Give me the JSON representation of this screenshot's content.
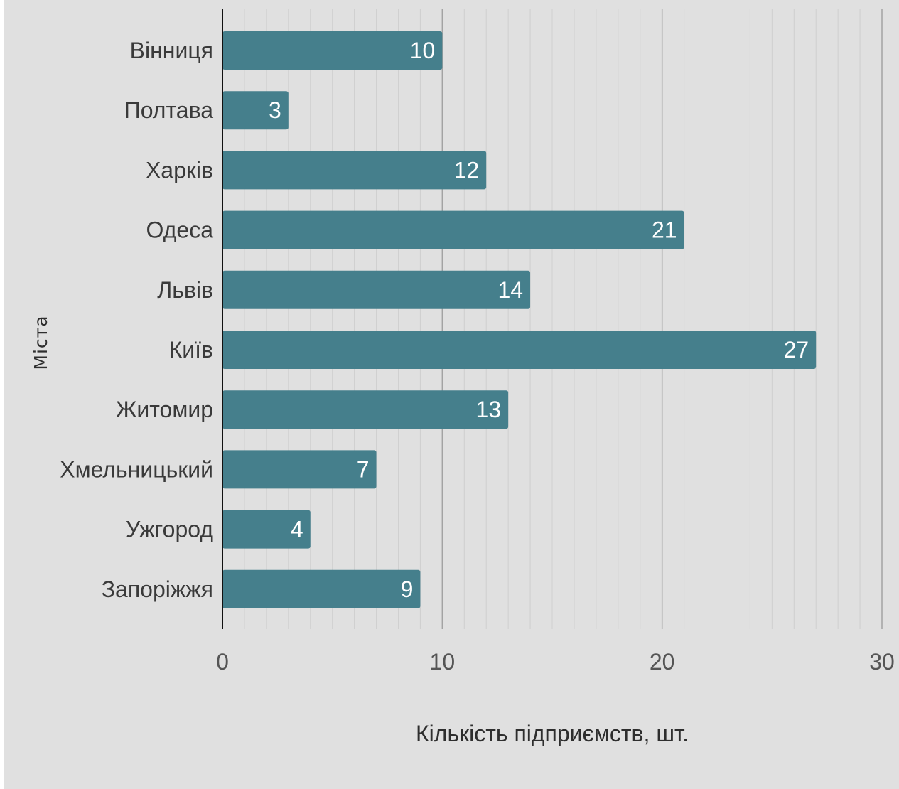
{
  "chart_data": {
    "type": "bar",
    "orientation": "horizontal",
    "categories": [
      "Вінниця",
      "Полтава",
      "Харків",
      "Одеса",
      "Львів",
      "Київ",
      "Житомир",
      "Хмельницький",
      "Ужгород",
      "Запоріжжя"
    ],
    "values": [
      10,
      3,
      12,
      21,
      14,
      27,
      13,
      7,
      4,
      9
    ],
    "xlabel": "Кількість підприємств, шт.",
    "ylabel": "Міста",
    "xlim": [
      0,
      30
    ],
    "xticks": [
      "0",
      "10",
      "20",
      "30"
    ],
    "grid": {
      "major": true,
      "minor": true
    },
    "data_labels": true,
    "colors": {
      "bar": "#457f8c",
      "background": "#e0e0e0",
      "major_grid": "#a3a3a3",
      "minor_grid": "#cfcfcf",
      "axis": "#111111"
    }
  }
}
